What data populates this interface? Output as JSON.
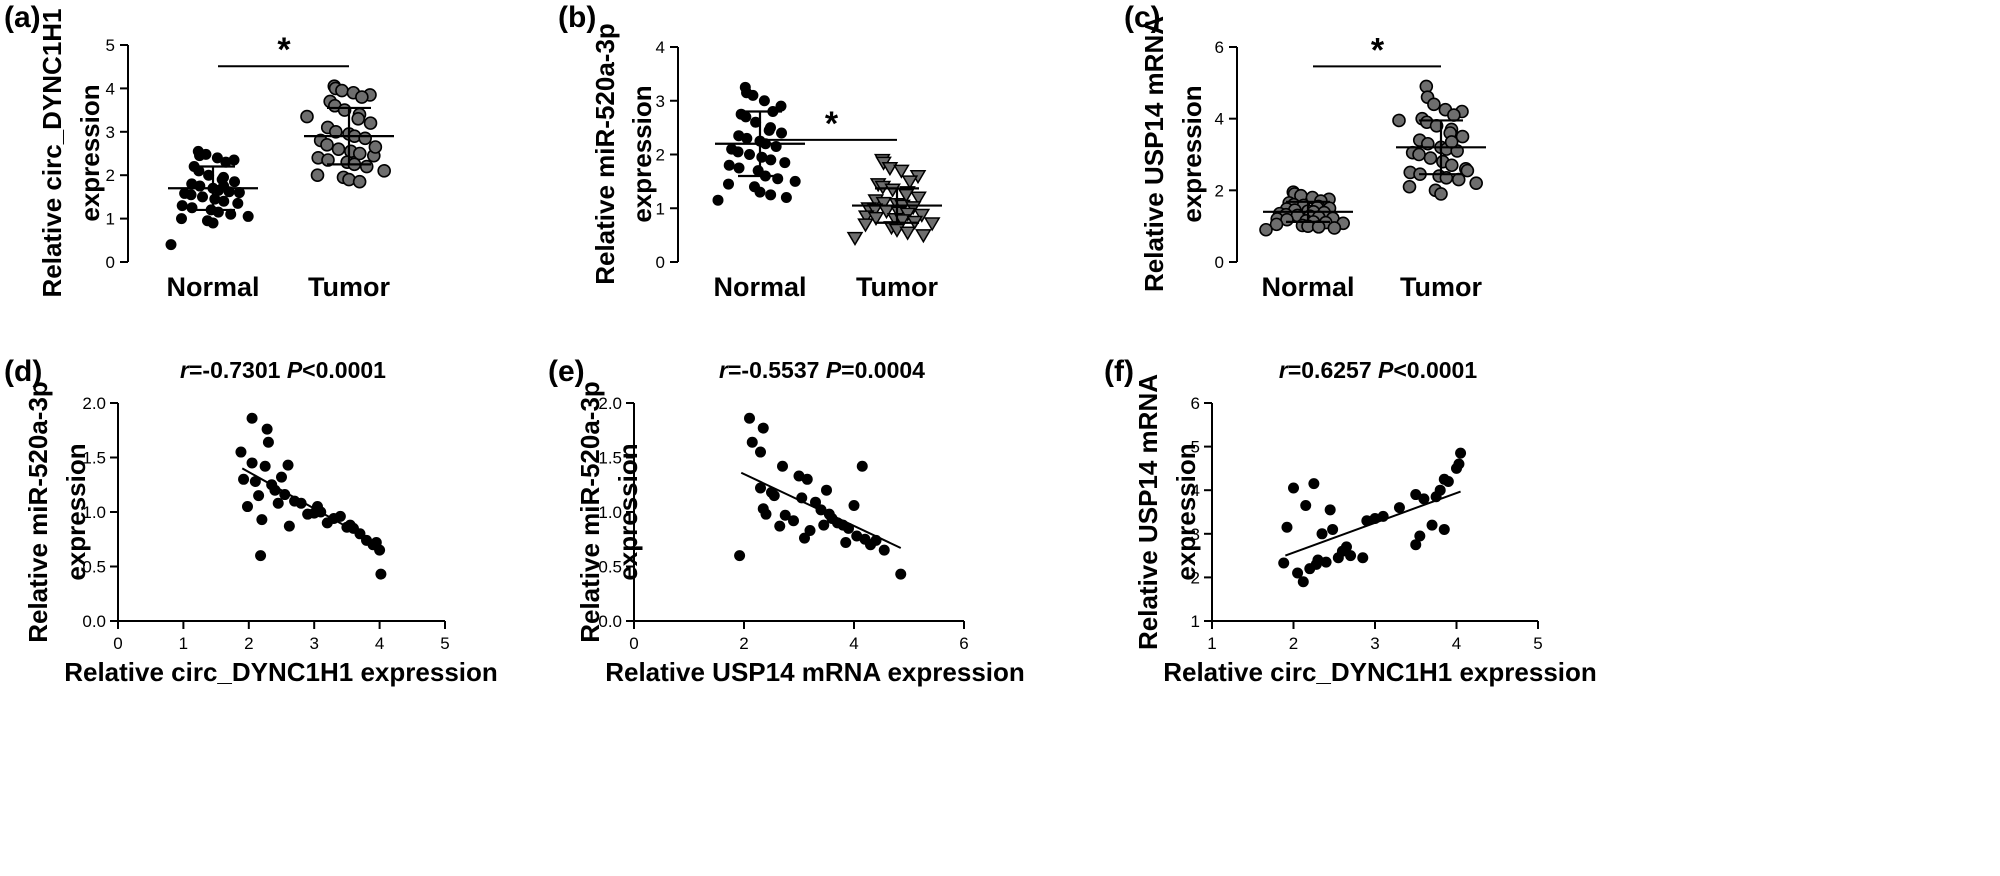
{
  "chart_data": [
    {
      "panel": "(a)",
      "type": "scatter",
      "categories": [
        "Normal",
        "Tumor"
      ],
      "ylabel": [
        "Relative circ_DYNC1H1",
        "expression"
      ],
      "ylim": [
        0,
        5
      ],
      "yticks": [
        "0",
        "1",
        "2",
        "3",
        "4",
        "5"
      ],
      "significance": "*",
      "series": [
        {
          "name": "Normal",
          "marker": "circle",
          "mean": 1.7,
          "sd": 0.5,
          "values": [
            2.55,
            2.45,
            2.48,
            2.4,
            2.35,
            2.3,
            2.2,
            2.1,
            2.0,
            1.95,
            1.9,
            1.85,
            1.8,
            1.75,
            1.7,
            1.65,
            1.62,
            1.58,
            1.55,
            1.5,
            1.45,
            1.4,
            1.35,
            1.3,
            1.25,
            1.2,
            1.15,
            1.1,
            1.05,
            1.0,
            0.95,
            0.9,
            1.75,
            1.6,
            0.4
          ]
        },
        {
          "name": "Tumor",
          "marker": "circle",
          "mean": 2.9,
          "sd": 0.65,
          "values": [
            4.05,
            4.0,
            3.95,
            3.9,
            3.85,
            3.8,
            3.7,
            3.6,
            3.5,
            3.4,
            3.3,
            3.2,
            3.1,
            3.0,
            2.95,
            2.9,
            2.85,
            2.8,
            2.7,
            2.6,
            2.55,
            2.5,
            2.45,
            2.4,
            2.35,
            2.3,
            2.25,
            2.2,
            2.1,
            2.0,
            1.95,
            1.9,
            1.85,
            2.65,
            3.35
          ]
        }
      ]
    },
    {
      "panel": "(b)",
      "type": "scatter",
      "categories": [
        "Normal",
        "Tumor"
      ],
      "ylabel": [
        "Relative miR-520a-3p",
        "expression"
      ],
      "ylim": [
        0,
        4
      ],
      "yticks": [
        "0",
        "1",
        "2",
        "3",
        "4"
      ],
      "significance": "*",
      "series": [
        {
          "name": "Normal",
          "marker": "circle",
          "mean": 2.2,
          "sd": 0.6,
          "values": [
            3.25,
            3.15,
            3.1,
            3.0,
            2.9,
            2.8,
            2.75,
            2.7,
            2.6,
            2.5,
            2.45,
            2.4,
            2.35,
            2.3,
            2.25,
            2.2,
            2.15,
            2.1,
            2.05,
            2.0,
            1.95,
            1.9,
            1.85,
            1.8,
            1.75,
            1.7,
            1.6,
            1.55,
            1.5,
            1.45,
            1.4,
            1.3,
            1.25,
            1.2,
            1.15
          ]
        },
        {
          "name": "Tumor",
          "marker": "triangle-down",
          "mean": 1.05,
          "sd": 0.32,
          "values": [
            1.9,
            1.85,
            1.75,
            1.7,
            1.6,
            1.5,
            1.45,
            1.4,
            1.35,
            1.3,
            1.25,
            1.2,
            1.15,
            1.1,
            1.08,
            1.05,
            1.02,
            1.0,
            0.98,
            0.95,
            0.92,
            0.9,
            0.88,
            0.85,
            0.82,
            0.8,
            0.78,
            0.75,
            0.72,
            0.7,
            0.65,
            0.6,
            0.55,
            0.5,
            0.45
          ]
        }
      ]
    },
    {
      "panel": "(c)",
      "type": "scatter",
      "categories": [
        "Normal",
        "Tumor"
      ],
      "ylabel": [
        "Relative USP14 mRNA",
        "expression"
      ],
      "ylim": [
        0,
        6
      ],
      "yticks": [
        "0",
        "2",
        "4",
        "6"
      ],
      "significance": "*",
      "series": [
        {
          "name": "Normal",
          "marker": "circle",
          "mean": 1.4,
          "sd": 0.28,
          "values": [
            1.95,
            1.9,
            1.85,
            1.8,
            1.75,
            1.7,
            1.65,
            1.6,
            1.58,
            1.55,
            1.52,
            1.5,
            1.48,
            1.45,
            1.42,
            1.4,
            1.38,
            1.35,
            1.32,
            1.3,
            1.28,
            1.25,
            1.22,
            1.2,
            1.18,
            1.15,
            1.12,
            1.1,
            1.08,
            1.05,
            1.02,
            1.0,
            0.98,
            0.95,
            0.9
          ]
        },
        {
          "name": "Tumor",
          "marker": "circle",
          "mean": 3.2,
          "sd": 0.75,
          "values": [
            4.9,
            4.6,
            4.4,
            4.25,
            4.2,
            4.1,
            4.0,
            3.9,
            3.8,
            3.7,
            3.6,
            3.5,
            3.4,
            3.3,
            3.2,
            3.15,
            3.1,
            3.05,
            3.0,
            2.9,
            2.8,
            2.7,
            2.6,
            2.5,
            2.45,
            2.4,
            2.35,
            2.3,
            2.2,
            2.1,
            2.0,
            1.9,
            3.35,
            2.55,
            3.95
          ]
        }
      ]
    },
    {
      "panel": "(d)",
      "type": "scatter",
      "stat_r_symbol": "r",
      "stat_r_value": "=-0.7301",
      "stat_p_symbol": "P",
      "stat_p_value": "<0.0001",
      "xlabel": "Relative circ_DYNC1H1 expression",
      "ylabel": [
        "Relative miR-520a-3p",
        "expression"
      ],
      "xlim": [
        0,
        5
      ],
      "ylim": [
        0,
        2.0
      ],
      "xticks": [
        "0",
        "1",
        "2",
        "3",
        "4",
        "5"
      ],
      "yticks": [
        "0.0",
        "0.5",
        "1.0",
        "1.5",
        "2.0"
      ],
      "fit_line": {
        "x": [
          1.9,
          4.05
        ],
        "y": [
          1.4,
          0.68
        ]
      },
      "points": [
        [
          1.88,
          1.55
        ],
        [
          1.92,
          1.3
        ],
        [
          1.98,
          1.05
        ],
        [
          2.05,
          1.86
        ],
        [
          2.05,
          1.45
        ],
        [
          2.1,
          1.28
        ],
        [
          2.15,
          1.15
        ],
        [
          2.18,
          0.6
        ],
        [
          2.2,
          0.93
        ],
        [
          2.25,
          1.42
        ],
        [
          2.28,
          1.76
        ],
        [
          2.3,
          1.64
        ],
        [
          2.35,
          1.25
        ],
        [
          2.4,
          1.2
        ],
        [
          2.45,
          1.08
        ],
        [
          2.5,
          1.32
        ],
        [
          2.55,
          1.16
        ],
        [
          2.6,
          1.43
        ],
        [
          2.62,
          0.87
        ],
        [
          2.7,
          1.1
        ],
        [
          2.8,
          1.08
        ],
        [
          2.9,
          0.98
        ],
        [
          3.0,
          0.99
        ],
        [
          3.05,
          1.05
        ],
        [
          3.1,
          1.0
        ],
        [
          3.2,
          0.9
        ],
        [
          3.3,
          0.94
        ],
        [
          3.4,
          0.96
        ],
        [
          3.5,
          0.86
        ],
        [
          3.55,
          0.88
        ],
        [
          3.6,
          0.85
        ],
        [
          3.7,
          0.8
        ],
        [
          3.8,
          0.74
        ],
        [
          3.9,
          0.7
        ],
        [
          3.95,
          0.72
        ],
        [
          4.0,
          0.65
        ],
        [
          4.02,
          0.43
        ]
      ]
    },
    {
      "panel": "(e)",
      "type": "scatter",
      "stat_r_symbol": "r",
      "stat_r_value": "=-0.5537",
      "stat_p_symbol": "P",
      "stat_p_value": "=0.0004",
      "xlabel": "Relative USP14 mRNA expression",
      "ylabel": [
        "Relative miR-520a-3p",
        "expression"
      ],
      "xlim": [
        0,
        6
      ],
      "ylim": [
        0,
        2.0
      ],
      "xticks": [
        "0",
        "2",
        "4",
        "6"
      ],
      "yticks": [
        "0.0",
        "0.5",
        "1.0",
        "1.5",
        "2.0"
      ],
      "fit_line": {
        "x": [
          1.95,
          4.85
        ],
        "y": [
          1.36,
          0.67
        ]
      },
      "points": [
        [
          1.92,
          0.6
        ],
        [
          2.1,
          1.86
        ],
        [
          2.15,
          1.64
        ],
        [
          2.35,
          1.77
        ],
        [
          2.3,
          1.55
        ],
        [
          2.3,
          1.22
        ],
        [
          2.35,
          1.03
        ],
        [
          2.4,
          0.98
        ],
        [
          2.5,
          1.18
        ],
        [
          2.55,
          1.15
        ],
        [
          2.65,
          0.87
        ],
        [
          2.7,
          1.42
        ],
        [
          2.75,
          0.97
        ],
        [
          2.9,
          0.92
        ],
        [
          3.0,
          1.33
        ],
        [
          3.05,
          1.13
        ],
        [
          3.1,
          0.76
        ],
        [
          3.15,
          1.3
        ],
        [
          3.2,
          0.83
        ],
        [
          3.3,
          1.09
        ],
        [
          3.4,
          1.02
        ],
        [
          3.45,
          0.88
        ],
        [
          3.5,
          1.2
        ],
        [
          3.55,
          0.98
        ],
        [
          3.6,
          0.94
        ],
        [
          3.7,
          0.9
        ],
        [
          3.8,
          0.88
        ],
        [
          3.85,
          0.72
        ],
        [
          3.9,
          0.85
        ],
        [
          4.0,
          1.06
        ],
        [
          4.05,
          0.78
        ],
        [
          4.15,
          1.42
        ],
        [
          4.2,
          0.75
        ],
        [
          4.3,
          0.7
        ],
        [
          4.4,
          0.74
        ],
        [
          4.55,
          0.65
        ],
        [
          4.85,
          0.43
        ]
      ]
    },
    {
      "panel": "(f)",
      "type": "scatter",
      "stat_r_symbol": "r",
      "stat_r_value": "=0.6257",
      "stat_p_symbol": "P",
      "stat_p_value": "<0.0001",
      "xlabel": "Relative circ_DYNC1H1 expression",
      "ylabel": [
        "Relative USP14 mRNA",
        "expression"
      ],
      "xlim": [
        1,
        5
      ],
      "ylim": [
        1,
        6
      ],
      "xticks": [
        "1",
        "2",
        "3",
        "4",
        "5"
      ],
      "yticks": [
        "1",
        "2",
        "3",
        "4",
        "5",
        "6"
      ],
      "fit_line": {
        "x": [
          1.9,
          4.05
        ],
        "y": [
          2.5,
          3.97
        ]
      },
      "points": [
        [
          1.88,
          2.33
        ],
        [
          1.92,
          3.15
        ],
        [
          2.0,
          4.05
        ],
        [
          2.05,
          2.1
        ],
        [
          2.12,
          1.9
        ],
        [
          2.15,
          3.65
        ],
        [
          2.2,
          2.2
        ],
        [
          2.25,
          4.15
        ],
        [
          2.28,
          2.3
        ],
        [
          2.3,
          2.4
        ],
        [
          2.35,
          3.0
        ],
        [
          2.4,
          2.35
        ],
        [
          2.45,
          3.55
        ],
        [
          2.48,
          3.1
        ],
        [
          2.55,
          2.45
        ],
        [
          2.6,
          2.6
        ],
        [
          2.65,
          2.7
        ],
        [
          2.7,
          2.5
        ],
        [
          2.85,
          2.45
        ],
        [
          2.9,
          3.3
        ],
        [
          3.0,
          3.35
        ],
        [
          3.1,
          3.4
        ],
        [
          3.3,
          3.6
        ],
        [
          3.5,
          3.9
        ],
        [
          3.5,
          2.75
        ],
        [
          3.55,
          2.95
        ],
        [
          3.6,
          3.8
        ],
        [
          3.7,
          3.2
        ],
        [
          3.75,
          3.85
        ],
        [
          3.8,
          4.0
        ],
        [
          3.85,
          4.25
        ],
        [
          3.85,
          3.1
        ],
        [
          3.9,
          4.2
        ],
        [
          4.0,
          4.5
        ],
        [
          4.03,
          4.6
        ],
        [
          4.05,
          4.85
        ]
      ]
    }
  ]
}
